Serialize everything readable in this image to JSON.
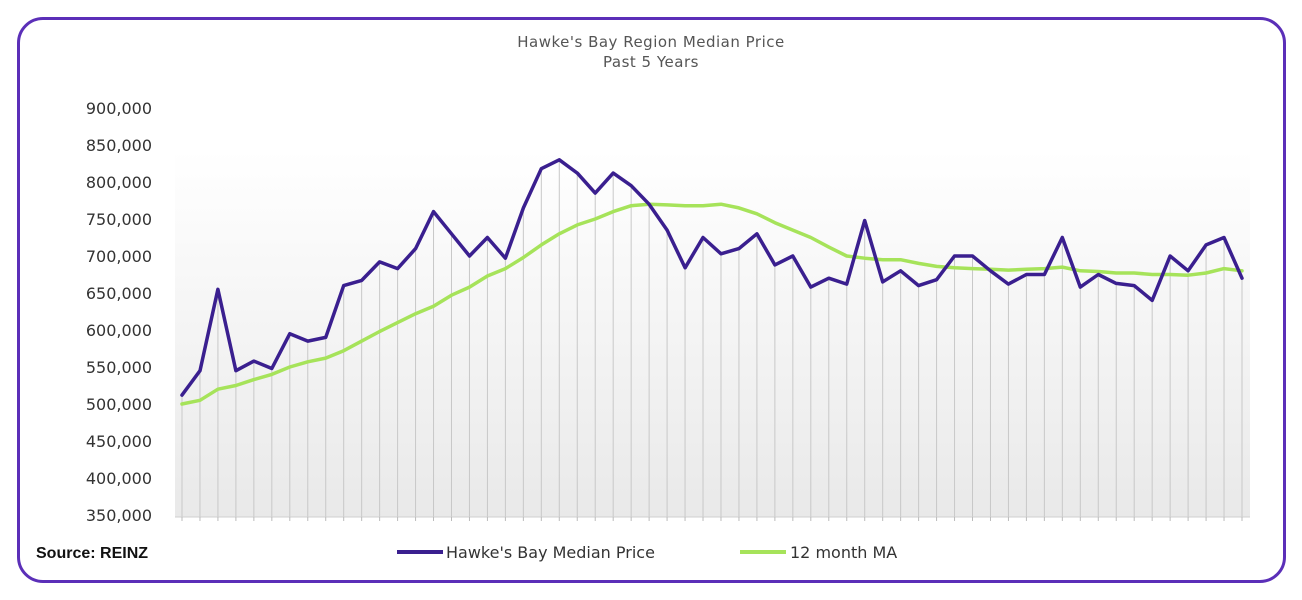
{
  "chart_data": {
    "type": "line",
    "title": "Hawke's Bay Region Median Price",
    "subtitle": "Past 5 Years",
    "source": "Source: REINZ",
    "ylim": [
      350000,
      900000
    ],
    "y_ticks": [
      "900,000",
      "850,000",
      "800,000",
      "750,000",
      "700,000",
      "650,000",
      "600,000",
      "550,000",
      "500,000",
      "450,000",
      "400,000",
      "350,000"
    ],
    "y_tick_values": [
      900000,
      850000,
      800000,
      750000,
      700000,
      650000,
      600000,
      550000,
      500000,
      450000,
      400000,
      350000
    ],
    "legend_position": "bottom",
    "grid": "vertical drop lines",
    "series": [
      {
        "name": "Hawke's Bay Median Price",
        "color": "#3a1f8f",
        "values": [
          512000,
          545000,
          655000,
          545000,
          558000,
          548000,
          595000,
          585000,
          590000,
          660000,
          667000,
          692000,
          683000,
          710000,
          760000,
          730000,
          700000,
          725000,
          697000,
          765000,
          818000,
          830000,
          812000,
          785000,
          812000,
          795000,
          770000,
          735000,
          684000,
          725000,
          703000,
          710000,
          730000,
          688000,
          700000,
          658000,
          670000,
          662000,
          748000,
          665000,
          680000,
          660000,
          668000,
          700000,
          700000,
          680000,
          662000,
          675000,
          675000,
          725000,
          658000,
          675000,
          663000,
          660000,
          640000,
          700000,
          680000,
          715000,
          725000,
          670000
        ]
      },
      {
        "name": "12 month MA",
        "color": "#a6e35a",
        "values": [
          500000,
          505000,
          520000,
          525000,
          533000,
          540000,
          550000,
          557000,
          562000,
          572000,
          585000,
          598000,
          610000,
          622000,
          632000,
          647000,
          658000,
          673000,
          683000,
          698000,
          715000,
          730000,
          742000,
          750000,
          760000,
          768000,
          770000,
          769000,
          768000,
          768000,
          770000,
          765000,
          757000,
          745000,
          735000,
          725000,
          712000,
          700000,
          697000,
          695000,
          695000,
          690000,
          686000,
          684000,
          683000,
          682000,
          681000,
          682000,
          683000,
          685000,
          680000,
          679000,
          677000,
          677000,
          675000,
          675000,
          674000,
          677000,
          683000,
          680000
        ]
      }
    ]
  }
}
